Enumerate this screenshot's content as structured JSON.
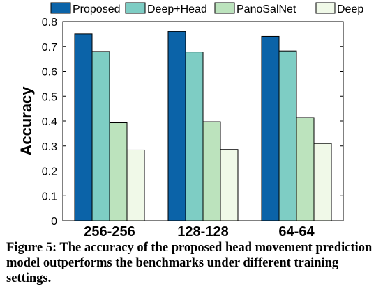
{
  "chart_data": {
    "type": "bar",
    "categories": [
      "256-256",
      "128-128",
      "64-64"
    ],
    "series": [
      {
        "name": "Proposed",
        "values": [
          0.75,
          0.76,
          0.74
        ],
        "color": "#0b63a8"
      },
      {
        "name": "Deep+Head",
        "values": [
          0.68,
          0.678,
          0.682
        ],
        "color": "#7ecdc4"
      },
      {
        "name": "PanoSalNet",
        "values": [
          0.393,
          0.397,
          0.414
        ],
        "color": "#bce3bd"
      },
      {
        "name": "Deep",
        "values": [
          0.284,
          0.286,
          0.31
        ],
        "color": "#f0f9e8"
      }
    ],
    "ylabel": "Accuracy",
    "xlabel": "",
    "ylim": [
      0,
      0.8
    ],
    "yticks": [
      "0",
      "0.1",
      "0.2",
      "0.3",
      "0.4",
      "0.5",
      "0.6",
      "0.7",
      "0.8"
    ],
    "legend_position": "top",
    "grid": false
  },
  "caption": "Figure 5: The accuracy of the proposed head movement prediction model outperforms the benchmarks under different training settings."
}
